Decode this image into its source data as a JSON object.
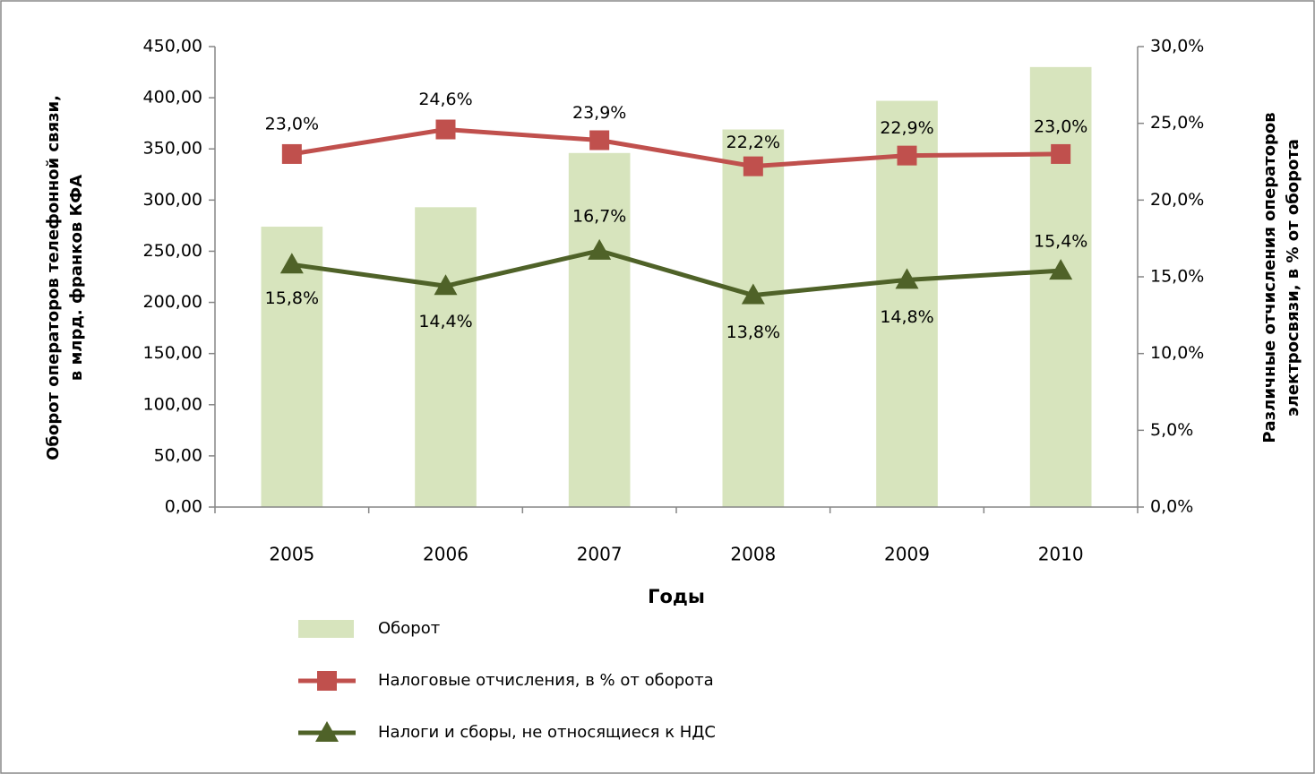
{
  "chart_data": {
    "type": "bar",
    "categories": [
      "2005",
      "2006",
      "2007",
      "2008",
      "2009",
      "2010"
    ],
    "xlabel": "Годы",
    "ylabel": [
      "Оборот операторов телефонной связи,",
      "в млрд. франков КФА"
    ],
    "y2label": [
      "Различные отчисления операторов",
      "электросвязи, в % от оборота"
    ],
    "ylim": [
      0,
      450
    ],
    "yticks": [
      {
        "value": 0,
        "label": "0,00"
      },
      {
        "value": 50,
        "label": "50,00"
      },
      {
        "value": 100,
        "label": "100,00"
      },
      {
        "value": 150,
        "label": "150,00"
      },
      {
        "value": 200,
        "label": "200,00"
      },
      {
        "value": 250,
        "label": "250,00"
      },
      {
        "value": 300,
        "label": "300,00"
      },
      {
        "value": 350,
        "label": "350,00"
      },
      {
        "value": 400,
        "label": "400,00"
      },
      {
        "value": 450,
        "label": "450,00"
      }
    ],
    "y2lim": [
      0,
      30
    ],
    "y2ticks": [
      {
        "value": 0,
        "label": "0,0%"
      },
      {
        "value": 5,
        "label": "5,0%"
      },
      {
        "value": 10,
        "label": "10,0%"
      },
      {
        "value": 15,
        "label": "15,0%"
      },
      {
        "value": 20,
        "label": "20,0%"
      },
      {
        "value": 25,
        "label": "25,0%"
      },
      {
        "value": 30,
        "label": "30,0%"
      }
    ],
    "series": [
      {
        "name": "Оборот",
        "type": "bar",
        "color": "#d7e4bd",
        "values": [
          274,
          293,
          346,
          369,
          397,
          430
        ]
      },
      {
        "name": "Налоговые отчисления, в % от оборота",
        "type": "line",
        "marker": "square",
        "axis": "y2",
        "color": "#c0504d",
        "values": [
          23.0,
          24.6,
          23.9,
          22.2,
          22.9,
          23.0
        ],
        "value_labels": [
          "23,0%",
          "24,6%",
          "23,9%",
          "22,2%",
          "22,9%",
          "23,0%"
        ]
      },
      {
        "name": "Налоги и сборы, не относящиеся к НДС",
        "type": "line",
        "marker": "triangle",
        "axis": "y2",
        "color": "#4f6228",
        "values": [
          15.8,
          14.4,
          16.7,
          13.8,
          14.8,
          15.4
        ],
        "value_labels": [
          "15,8%",
          "14,4%",
          "16,7%",
          "13,8%",
          "14,8%",
          "15,4%"
        ]
      }
    ]
  }
}
